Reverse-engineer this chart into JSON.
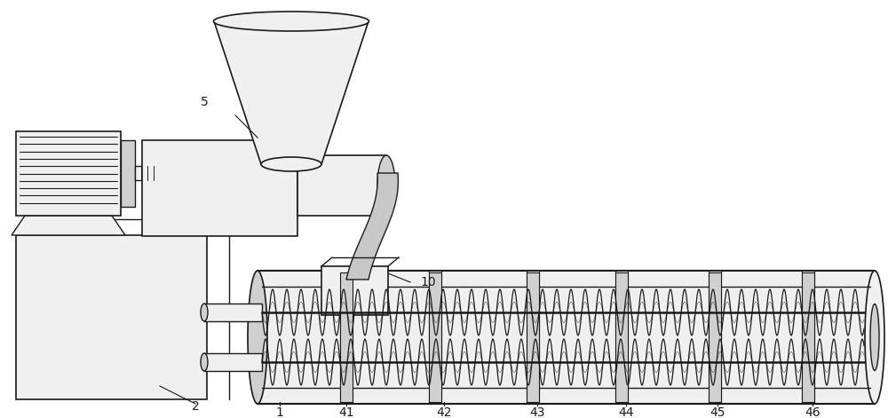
{
  "bg_color": "#ffffff",
  "line_color": "#1a1a1a",
  "line_width": 1.0,
  "fill_light": "#f0f0f0",
  "fill_medium": "#d0d0d0",
  "fill_dark": "#b0b0b0",
  "fill_gray": "#c8c8c8",
  "label_fontsize": 10,
  "fig_width": 10.0,
  "fig_height": 4.71,
  "dpi": 100
}
